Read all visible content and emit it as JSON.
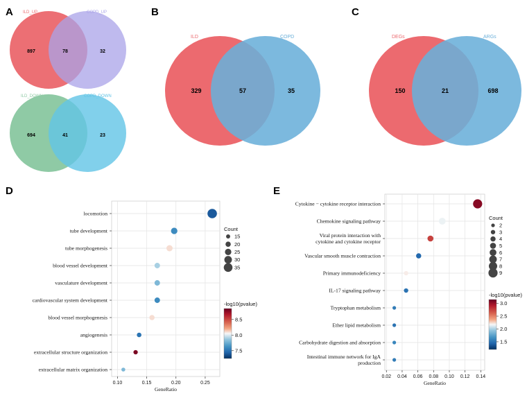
{
  "panels": {
    "A": {
      "label": "A",
      "venn_up": {
        "left_label": "ILD_UP",
        "right_label": "COPD_UP",
        "left_only": "897",
        "overlap": "78",
        "right_only": "32",
        "left_color": "#ec6f74",
        "right_color": "#a9a3e8"
      },
      "venn_down": {
        "left_label": "ILD_DOWN",
        "right_label": "COPD_DOWN",
        "left_only": "694",
        "overlap": "41",
        "right_only": "23",
        "left_color": "#8fcaa5",
        "right_color": "#62c4e6"
      }
    },
    "B": {
      "label": "B",
      "venn": {
        "left_label": "ILD",
        "right_label": "COPD",
        "left_only": "329",
        "overlap": "57",
        "right_only": "35",
        "left_color": "#ec6a6f",
        "right_color": "#6aafd9"
      }
    },
    "C": {
      "label": "C",
      "venn": {
        "left_label": "DEGs",
        "right_label": "ARGs",
        "left_only": "150",
        "overlap": "21",
        "right_only": "698",
        "left_color": "#ec6a6f",
        "right_color": "#6aafd9"
      }
    },
    "D": {
      "label": "D",
      "chart_data": {
        "type": "scatter",
        "xlabel": "GeneRatio",
        "xlim": [
          0.09,
          0.275
        ],
        "xticks": [
          "0.10",
          "0.15",
          "0.20",
          "0.25"
        ],
        "terms": [
          "locomotion",
          "tube development",
          "tube morphogenesis",
          "blood vessel development",
          "vasculature development",
          "cardiovascular system development",
          "blood vessel morphogenesis",
          "angiogenesis",
          "extracellular structure organization",
          "extracellular matrix organization"
        ],
        "gene_ratio": [
          0.262,
          0.197,
          0.189,
          0.168,
          0.168,
          0.168,
          0.159,
          0.137,
          0.131,
          0.11
        ],
        "count": [
          38,
          25,
          24,
          21,
          21,
          21,
          20,
          17,
          16,
          14
        ],
        "neg_log10_pvalue": [
          7.4,
          7.6,
          8.1,
          7.9,
          7.8,
          7.6,
          8.1,
          7.5,
          8.8,
          7.8
        ],
        "legend_count_title": "Count",
        "legend_count_values": [
          15,
          20,
          25,
          30,
          35
        ],
        "legend_color_title": "-log10(pvalue)",
        "color_ticks": [
          "7.5",
          "8.0",
          "8.5"
        ],
        "color_range": [
          7.25,
          8.85
        ]
      }
    },
    "E": {
      "label": "E",
      "chart_data": {
        "type": "scatter",
        "xlabel": "GeneRatio",
        "xlim": [
          0.018,
          0.145
        ],
        "xticks": [
          "0.02",
          "0.04",
          "0.06",
          "0.08",
          "0.10",
          "0.12",
          "0.14"
        ],
        "terms": [
          "Cytokine − cytokine receptor interaction",
          "Chemokine signaling pathway",
          "Viral protein interaction with cytokine and cytokine receptor",
          "Vascular smooth muscle contraction",
          "Primary immunodeficiency",
          "IL-17 signaling pathway",
          "Tryptophan metabolism",
          "Ether lipid metabolism",
          "Carbohydrate digestion and absorption",
          "Intestinal immune network for IgA production"
        ],
        "term_lines": [
          [
            "Cytokine − cytokine receptor interaction"
          ],
          [
            "Chemokine signaling pathway"
          ],
          [
            "Viral protein interaction with",
            "cytokine and cytokine receptor"
          ],
          [
            "Vascular smooth muscle contraction"
          ],
          [
            "Primary immunodeficiency"
          ],
          [
            "IL-17 signaling pathway"
          ],
          [
            "Tryptophan metabolism"
          ],
          [
            "Ether lipid metabolism"
          ],
          [
            "Carbohydrate digestion and absorption"
          ],
          [
            "Intestinal immune network for IgA",
            "production"
          ]
        ],
        "gene_ratio": [
          0.136,
          0.091,
          0.076,
          0.061,
          0.045,
          0.045,
          0.03,
          0.03,
          0.03,
          0.03
        ],
        "count": [
          9,
          6,
          5,
          4,
          3,
          3,
          2,
          2,
          2,
          2
        ],
        "neg_log10_pvalue": [
          3.05,
          2.15,
          2.75,
          1.45,
          2.2,
          1.5,
          1.55,
          1.5,
          1.6,
          1.55
        ],
        "legend_count_title": "Count",
        "legend_count_values": [
          2,
          3,
          4,
          5,
          6,
          7,
          8,
          9
        ],
        "legend_color_title": "-log10(pvalue)",
        "color_ticks": [
          "1.5",
          "2.0",
          "2.5",
          "3.0"
        ],
        "color_range": [
          1.2,
          3.15
        ]
      }
    }
  }
}
